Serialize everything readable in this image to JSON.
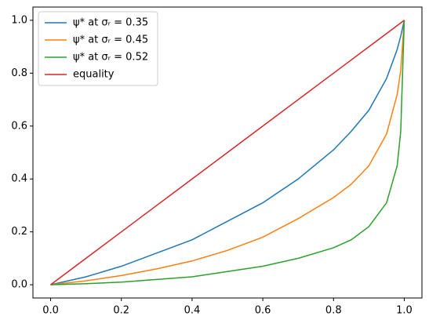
{
  "chart_data": {
    "type": "line",
    "x": [
      0,
      0.1,
      0.2,
      0.3,
      0.4,
      0.5,
      0.6,
      0.7,
      0.8,
      0.85,
      0.9,
      0.95,
      0.98,
      0.99,
      1.0
    ],
    "series": [
      {
        "name": "ψ* at σᵣ = 0.35",
        "color": "#1f77b4",
        "values": [
          0,
          0.03,
          0.07,
          0.12,
          0.17,
          0.24,
          0.31,
          0.4,
          0.51,
          0.58,
          0.66,
          0.78,
          0.89,
          0.94,
          1.0
        ]
      },
      {
        "name": "ψ* at σᵣ = 0.45",
        "color": "#ff7f0e",
        "values": [
          0,
          0.015,
          0.035,
          0.06,
          0.09,
          0.13,
          0.18,
          0.25,
          0.33,
          0.38,
          0.45,
          0.57,
          0.72,
          0.81,
          1.0
        ]
      },
      {
        "name": "ψ* at σᵣ = 0.52",
        "color": "#2ca02c",
        "values": [
          0,
          0.004,
          0.01,
          0.02,
          0.03,
          0.05,
          0.07,
          0.1,
          0.14,
          0.17,
          0.22,
          0.31,
          0.45,
          0.58,
          1.0
        ]
      },
      {
        "name": "equality",
        "color": "#d62728",
        "values": [
          0,
          0.1,
          0.2,
          0.3,
          0.4,
          0.5,
          0.6,
          0.7,
          0.8,
          0.85,
          0.9,
          0.95,
          0.98,
          0.99,
          1.0
        ]
      }
    ],
    "xlim": [
      -0.05,
      1.05
    ],
    "ylim": [
      -0.05,
      1.05
    ],
    "xticks": [
      {
        "value": 0,
        "label": "0.0"
      },
      0.2,
      0.4,
      0.6,
      0.8,
      {
        "value": 1,
        "label": "1.0"
      }
    ],
    "yticks": [
      {
        "value": 0,
        "label": "0.0"
      },
      0.2,
      0.4,
      0.6,
      0.8,
      {
        "value": 1,
        "label": "1.0"
      }
    ],
    "legend": "upper left"
  }
}
